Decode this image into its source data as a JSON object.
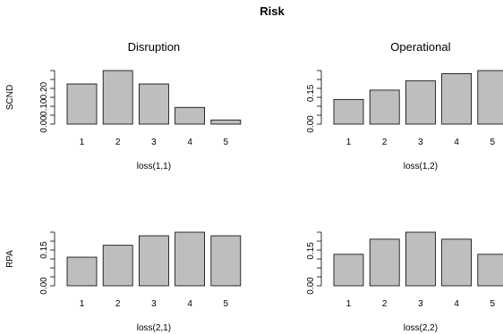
{
  "title": "Risk",
  "chart_data": [
    {
      "type": "bar",
      "title": "Disruption",
      "ylabel": "SCND",
      "xlabel": "loss(1,1)",
      "categories": [
        "1",
        "2",
        "3",
        "4",
        "5"
      ],
      "values": [
        0.24,
        0.32,
        0.24,
        0.1,
        0.025
      ],
      "ylim": [
        0,
        0.32
      ],
      "yticks": [
        "0.00",
        "0.10",
        "0.20"
      ],
      "ytick_values": [
        0,
        0.1,
        0.2
      ],
      "bar_color": "#bebebe"
    },
    {
      "type": "bar",
      "title": "Operational",
      "ylabel": "",
      "xlabel": "loss(1,2)",
      "categories": [
        "1",
        "2",
        "3",
        "4",
        "5"
      ],
      "values": [
        0.12,
        0.165,
        0.21,
        0.245,
        0.26
      ],
      "ylim": [
        0,
        0.26
      ],
      "yticks": [
        "0.00",
        "0.15"
      ],
      "ytick_values": [
        0,
        0.15
      ],
      "bar_color": "#bebebe"
    },
    {
      "type": "bar",
      "title": "",
      "ylabel": "RPA",
      "xlabel": "loss(2,1)",
      "categories": [
        "1",
        "2",
        "3",
        "4",
        "5"
      ],
      "values": [
        0.12,
        0.17,
        0.21,
        0.225,
        0.21
      ],
      "ylim": [
        0,
        0.225
      ],
      "yticks": [
        "0.00",
        "0.15"
      ],
      "ytick_values": [
        0,
        0.15
      ],
      "bar_color": "#bebebe"
    },
    {
      "type": "bar",
      "title": "",
      "ylabel": "",
      "xlabel": "loss(2,2)",
      "categories": [
        "1",
        "2",
        "3",
        "4",
        "5"
      ],
      "values": [
        0.135,
        0.2,
        0.23,
        0.2,
        0.135
      ],
      "ylim": [
        0,
        0.23
      ],
      "yticks": [
        "0.00",
        "0.15"
      ],
      "ytick_values": [
        0,
        0.15
      ],
      "bar_color": "#bebebe"
    }
  ]
}
